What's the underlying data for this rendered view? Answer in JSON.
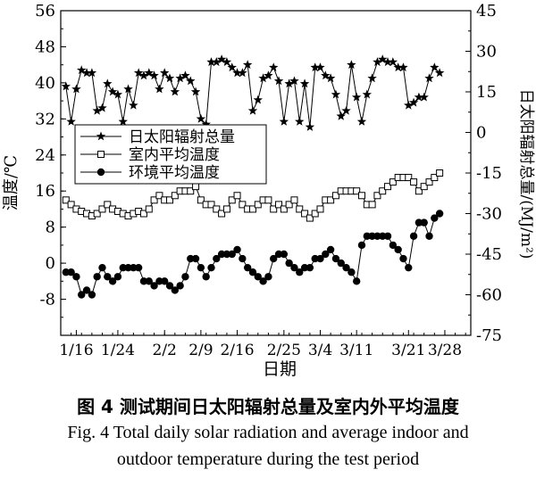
{
  "chart_data": {
    "type": "line",
    "xlabel": "日期",
    "ylabel_left": "温度/℃",
    "ylabel_right": "日太阳辐射总量/(MJ/m²)",
    "ylim_left": [
      -16,
      56
    ],
    "yticks_left": [
      "56",
      "48",
      "40",
      "32",
      "24",
      "16",
      "8",
      "0",
      "-8"
    ],
    "ylim_right": [
      -75,
      45
    ],
    "yticks_right": [
      "45",
      "30",
      "15",
      "0",
      "-15",
      "-30",
      "-45",
      "-60",
      "-75"
    ],
    "x_start": "1/13",
    "x_end": "4/2",
    "xticks": [
      "1/16",
      "1/24",
      "2/2",
      "2/9",
      "2/16",
      "2/25",
      "3/4",
      "3/11",
      "3/21",
      "3/28"
    ],
    "legend_position": "upper-left",
    "grid": false,
    "series": [
      {
        "name": "日太阳辐射总量",
        "axis": "right",
        "marker": "star",
        "values": [
          17,
          4,
          16,
          23,
          22,
          22,
          8,
          9,
          18,
          15,
          14,
          4,
          16,
          10,
          22,
          21,
          22,
          21,
          16,
          22,
          20,
          15,
          20,
          21,
          19,
          15,
          5,
          3,
          26,
          26,
          27,
          26,
          24,
          22,
          22,
          25,
          8,
          12,
          20,
          21,
          24,
          19,
          4,
          18,
          19,
          4,
          18,
          2,
          24,
          24,
          21,
          20,
          14,
          6,
          8,
          25,
          13,
          4,
          14,
          20,
          26,
          27,
          26,
          26,
          24,
          24,
          10,
          11,
          13,
          13,
          20,
          24,
          22
        ]
      },
      {
        "name": "室内平均温度",
        "axis": "left",
        "marker": "square",
        "values": [
          14,
          13,
          12,
          11.5,
          11,
          10.5,
          11,
          12,
          13,
          12,
          11.5,
          11,
          10.5,
          11,
          11.5,
          11,
          12,
          14,
          15,
          14,
          14,
          15,
          16,
          16,
          16,
          17,
          14,
          13,
          13,
          12,
          11,
          12,
          14,
          15,
          13,
          12,
          12,
          13,
          14,
          14,
          12,
          13,
          12,
          13,
          14,
          12,
          11,
          10,
          11,
          12,
          14,
          14,
          15,
          16,
          16,
          16,
          16,
          15,
          13,
          13,
          15,
          16,
          17,
          18,
          19,
          19,
          19,
          18,
          16,
          17,
          18,
          19,
          20
        ]
      },
      {
        "name": "环境平均温度",
        "axis": "left",
        "marker": "circle",
        "values": [
          -2,
          -2,
          -3,
          -7,
          -6,
          -7,
          -3,
          -1,
          -3,
          -4,
          -3,
          -1,
          -1,
          -1,
          -1,
          -4,
          -4,
          -5,
          -4,
          -4,
          -5,
          -6,
          -5,
          -3,
          1,
          1,
          -1,
          -3,
          -1,
          1,
          2,
          2,
          2,
          3,
          1,
          -1,
          -2,
          -3,
          -4,
          -3,
          1,
          2,
          2,
          0,
          -1,
          -2,
          -1,
          -1,
          1,
          1,
          2,
          3,
          1,
          0,
          -1,
          -2,
          -4,
          4,
          6,
          6,
          6,
          6,
          6,
          4,
          3,
          1,
          -1,
          6,
          9,
          9,
          6,
          10,
          11
        ]
      }
    ]
  },
  "caption": {
    "cn": "图 4    测试期间日太阳辐射总量及室内外平均温度",
    "en_line1": "Fig. 4  Total daily solar radiation and average indoor and",
    "en_line2": "outdoor temperature during the test period"
  }
}
